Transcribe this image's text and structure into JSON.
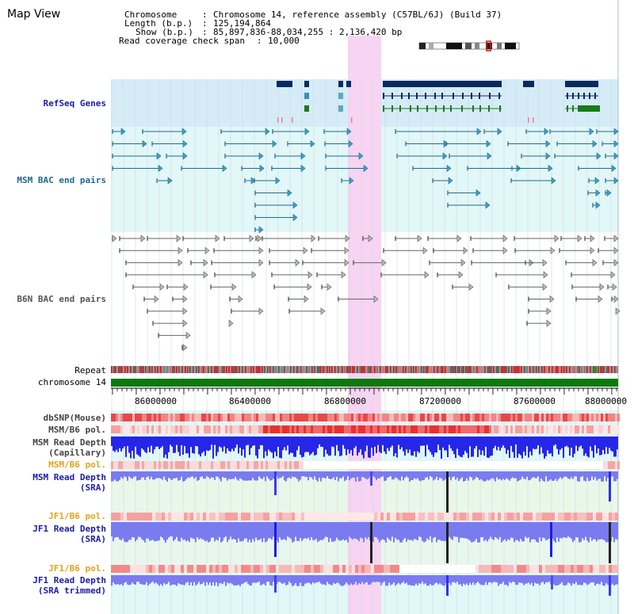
{
  "view_title": "Map View",
  "header": {
    "chromosome_key": "Chromosome",
    "chromosome_value": "Chromosome 14, reference assembly (C57BL/6J) (Build 37)",
    "length_key": "Length (b.p.)",
    "length_value": "125,194,864",
    "show_key": "Show (b.p.)",
    "show_value": "85,897,836-88,034,255 : 2,136,420 bp",
    "coverage_key": "Read coverage check span",
    "coverage_value": "10,000"
  },
  "tracks": {
    "refseq": "RefSeq Genes",
    "msm_bac": "MSM BAC end pairs",
    "b6n_bac": "B6N BAC end pairs",
    "repeat": "Repeat",
    "chromosome": "chromosome 14",
    "dbsnp": "dbSNP(Mouse)",
    "msm_b6_pol_1": "MSM/B6 pol.",
    "msm_read_depth_cap_1": "MSM Read Depth",
    "msm_read_depth_cap_2": "(Capillary)",
    "msm_b6_pol_2": "MSM/B6 pol.",
    "msm_read_depth_sra_1": "MSM Read Depth",
    "msm_read_depth_sra_2": "(SRA)",
    "jf1_b6_pol_1": "JF1/B6 pol.",
    "jf1_read_depth_sra_1": "JF1 Read Depth",
    "jf1_read_depth_sra_2": "(SRA)",
    "jf1_b6_pol_2": "JF1/B6 pol.",
    "jf1_read_depth_trim_1": "JF1 Read Depth",
    "jf1_read_depth_trim_2": "(SRA trimmed)"
  },
  "axis": {
    "ticks": [
      "86000000",
      "86400000",
      "86800000",
      "87200000",
      "87600000",
      "88000000"
    ]
  },
  "colors": {
    "highlight": "#f7d4f2",
    "refseq_bg": "#d5ecf8",
    "msm_bg": "#e2f7f7",
    "chromosome_bar": "#0b7a0b",
    "refseq_gene": "#0a2a5e",
    "msm_pair": "#1f6b8c",
    "b6n_pair": "#666666",
    "depth_blue": "#2626e8",
    "depth_light": "#7b7bf0",
    "snp_red": "#f07a7a"
  }
}
